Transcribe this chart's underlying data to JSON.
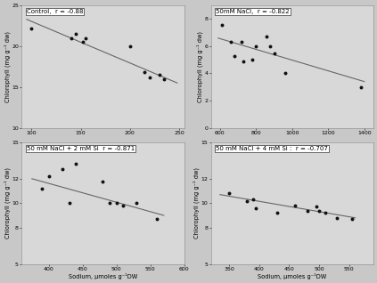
{
  "panels": [
    {
      "label": "Control,  r = -0.88",
      "scatter_x": [
        100,
        140,
        145,
        152,
        155,
        200,
        215,
        220,
        230,
        235
      ],
      "scatter_y": [
        22.2,
        21.0,
        21.5,
        20.5,
        21.0,
        20.0,
        16.8,
        16.2,
        16.5,
        16.0
      ],
      "line_x": [
        95,
        248
      ],
      "line_y": [
        23.3,
        15.5
      ],
      "xlim": [
        90,
        255
      ],
      "ylim": [
        10,
        25
      ],
      "xticks": [
        100,
        150,
        200,
        250
      ],
      "yticks": [
        10,
        15,
        20,
        25
      ],
      "ylabel": "Chlorophyll (mg g⁻¹ dw)",
      "xlabel": ""
    },
    {
      "label": "50mM NaCl,  r = -0.822",
      "scatter_x": [
        610,
        660,
        680,
        720,
        730,
        780,
        800,
        860,
        880,
        900,
        960,
        1380
      ],
      "scatter_y": [
        7.6,
        6.3,
        5.3,
        6.3,
        4.9,
        5.0,
        6.0,
        6.7,
        6.0,
        5.5,
        4.0,
        3.0
      ],
      "line_x": [
        590,
        1400
      ],
      "line_y": [
        6.6,
        3.4
      ],
      "xlim": [
        550,
        1450
      ],
      "ylim": [
        0,
        9
      ],
      "xticks": [
        600,
        800,
        1000,
        1200,
        1400
      ],
      "yticks": [
        0,
        2,
        4,
        6,
        8
      ],
      "ylabel": "Chlorophyll (mg g⁻¹ dw)",
      "xlabel": ""
    },
    {
      "label": "50 mM NaCl + 2 mM Si  r = -0.871",
      "scatter_x": [
        390,
        400,
        420,
        430,
        440,
        480,
        490,
        500,
        510,
        530,
        560
      ],
      "scatter_y": [
        11.2,
        12.2,
        12.8,
        10.0,
        13.2,
        11.8,
        10.0,
        10.0,
        9.8,
        10.0,
        8.7
      ],
      "line_x": [
        375,
        570
      ],
      "line_y": [
        12.0,
        9.0
      ],
      "xlim": [
        360,
        600
      ],
      "ylim": [
        5,
        15
      ],
      "xticks": [
        400,
        450,
        500,
        550,
        600
      ],
      "yticks": [
        5,
        8,
        10,
        12,
        15
      ],
      "ylabel": "Chlorophyll (mg g⁻¹ dw)",
      "xlabel": "Sodium, μmoles g⁻¹DW"
    },
    {
      "label": "50 mM NaCl + 4 mM Si :  r = -0.707",
      "scatter_x": [
        350,
        380,
        390,
        395,
        430,
        460,
        480,
        495,
        500,
        510,
        530,
        555
      ],
      "scatter_y": [
        10.8,
        10.2,
        10.3,
        9.6,
        9.2,
        9.8,
        9.4,
        9.7,
        9.4,
        9.2,
        8.8,
        8.7
      ],
      "line_x": [
        335,
        560
      ],
      "line_y": [
        10.7,
        8.8
      ],
      "xlim": [
        320,
        590
      ],
      "ylim": [
        5,
        15
      ],
      "xticks": [
        350,
        400,
        450,
        500,
        550
      ],
      "yticks": [
        5,
        8,
        10,
        12,
        15
      ],
      "ylabel": "Chlorophyll (mg g⁻¹ dw)",
      "xlabel": "Sodium, μmoles g⁻¹DW"
    }
  ],
  "dot_color": "#111111",
  "line_color": "#666666",
  "bg_color": "#d8d8d8",
  "fig_bg": "#c8c8c8"
}
